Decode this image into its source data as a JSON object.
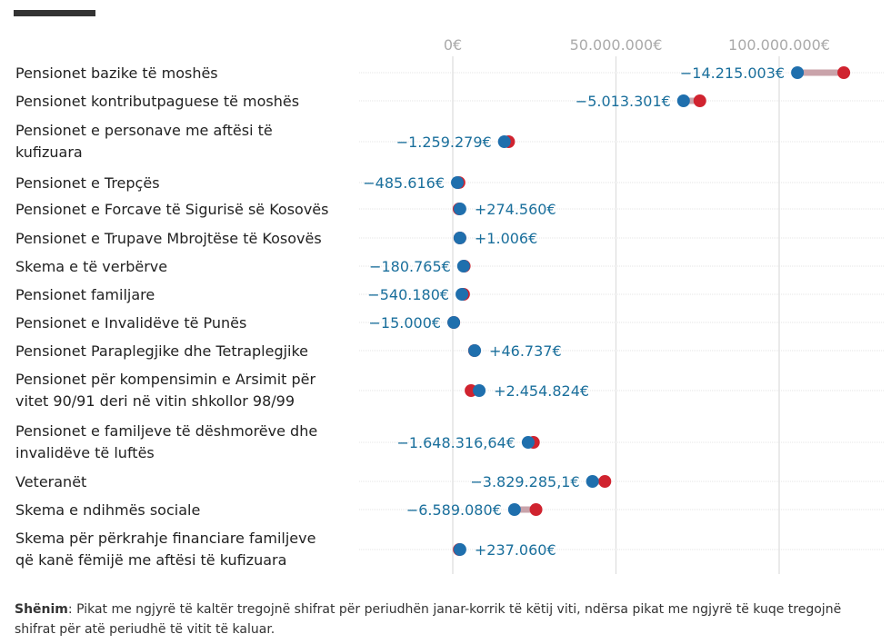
{
  "chart_data": {
    "type": "dumbbell",
    "unit": "€",
    "xlim": [
      -2000000,
      130000000
    ],
    "xticks": [
      0,
      50000000,
      100000000
    ],
    "xtick_labels": [
      "0€",
      "50.000.000€",
      "100.000.000€"
    ],
    "grid": true,
    "colors": {
      "current": "#1f6fad",
      "previous": "#d0232f"
    },
    "series_meaning": {
      "current": "blue dot: janar-korrik this year",
      "previous": "red dot: same period last year"
    },
    "rows": [
      {
        "label": [
          "Pensionet bazike të moshës"
        ],
        "current": 105600000,
        "previous": 119800000,
        "change": "−14.215.003€"
      },
      {
        "label": [
          "Pensionet kontributpaguese të moshës"
        ],
        "current": 70700000,
        "previous": 75700000,
        "change": "−5.013.301€"
      },
      {
        "label": [
          "Pensionet e personave me aftësi të",
          "kufizuara"
        ],
        "current": 15800000,
        "previous": 17100000,
        "change": "−1.259.279€"
      },
      {
        "label": [
          "Pensionet e Trepçës"
        ],
        "current": 1400000,
        "previous": 1900000,
        "change": "−485.616€"
      },
      {
        "label": [
          "Pensionet e Forcave të Sigurisë së Kosovës"
        ],
        "current": 2200000,
        "previous": 1950000,
        "change": "+274.560€"
      },
      {
        "label": [
          "Pensionet e Trupave Mbrojtëse të Kosovës"
        ],
        "current": 2200000,
        "previous": 2200000,
        "change": "+1.006€"
      },
      {
        "label": [
          "Skema e të verbërve"
        ],
        "current": 3300000,
        "previous": 3500000,
        "change": "−180.765€"
      },
      {
        "label": [
          "Pensionet familjare"
        ],
        "current": 2800000,
        "previous": 3300000,
        "change": "−540.180€"
      },
      {
        "label": [
          "Pensionet e Invalidëve të Punës"
        ],
        "current": 300000,
        "previous": 315000,
        "change": "−15.000€"
      },
      {
        "label": [
          "Pensionet Paraplegjike dhe Tetraplegjike"
        ],
        "current": 6700000,
        "previous": 6650000,
        "change": "+46.737€"
      },
      {
        "label": [
          "Pensionet për kompensimin e Arsimit për",
          "vitet 90/91 deri në vitin shkollor 98/99"
        ],
        "current": 8100000,
        "previous": 5600000,
        "change": "+2.454.824€"
      },
      {
        "label": [
          "Pensionet e familjeve të dëshmorëve dhe",
          "invalidëve të luftës"
        ],
        "current": 23100000,
        "previous": 24700000,
        "change": "−1.648.316,64€"
      },
      {
        "label": [
          "Veteranët"
        ],
        "current": 42800000,
        "previous": 46600000,
        "change": "−3.829.285,1€"
      },
      {
        "label": [
          "Skema e ndihmës sociale"
        ],
        "current": 18900000,
        "previous": 25500000,
        "change": "−6.589.080€"
      },
      {
        "label": [
          "Skema për përkrahje financiare familjeve",
          "që kanë fëmijë me aftësi të kufizuara"
        ],
        "current": 2200000,
        "previous": 2000000,
        "change": "+237.060€"
      }
    ]
  },
  "note": {
    "title": "Shënim",
    "text": ": Pikat me ngjyrë të kaltër tregojnë shifrat për periudhën janar-korrik të këtij viti, ndërsa pikat me ngjyrë të kuqe tregojnë shifrat për atë periudhë të vitit të kaluar."
  }
}
